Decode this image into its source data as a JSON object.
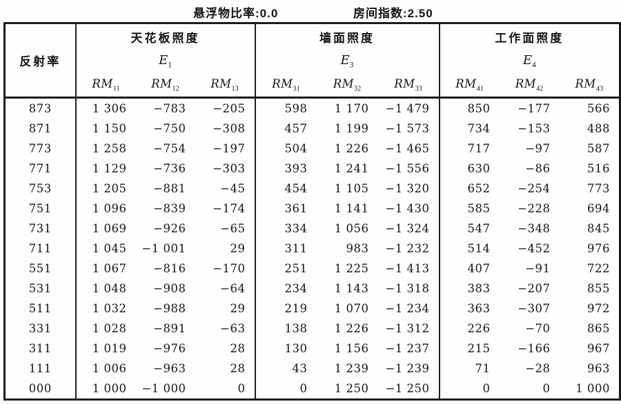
{
  "colors": {
    "ink": "#1c1c1c",
    "paper": "#fefefe"
  },
  "page_header": {
    "suspended_matter_ratio_label": "悬浮物比率:",
    "suspended_matter_ratio_value": "0.0",
    "room_index_label": "房间指数:",
    "room_index_value": "2.50"
  },
  "table": {
    "corner_header": "反射率",
    "groups": [
      {
        "title": "天花板照度",
        "symbol": "E",
        "symbol_sub": "1",
        "columns": [
          {
            "name": "RM",
            "sub": "11"
          },
          {
            "name": "RM",
            "sub": "12"
          },
          {
            "name": "RM",
            "sub": "13"
          }
        ]
      },
      {
        "title": "墙面照度",
        "symbol": "E",
        "symbol_sub": "3",
        "columns": [
          {
            "name": "RM",
            "sub": "31"
          },
          {
            "name": "RM",
            "sub": "32"
          },
          {
            "name": "RM",
            "sub": "33"
          }
        ]
      },
      {
        "title": "工作面照度",
        "symbol": "E",
        "symbol_sub": "4",
        "columns": [
          {
            "name": "RM",
            "sub": "41"
          },
          {
            "name": "RM",
            "sub": "42"
          },
          {
            "name": "RM",
            "sub": "43"
          }
        ]
      }
    ],
    "rows": [
      {
        "reflectance": "873",
        "values": [
          "1 306",
          "−783",
          "−205",
          "598",
          "1 170",
          "−1 479",
          "850",
          "−177",
          "566"
        ]
      },
      {
        "reflectance": "871",
        "values": [
          "1 150",
          "−750",
          "−308",
          "457",
          "1 199",
          "−1 573",
          "734",
          "−153",
          "488"
        ]
      },
      {
        "reflectance": "773",
        "values": [
          "1 258",
          "−754",
          "−197",
          "504",
          "1 226",
          "−1 465",
          "717",
          "−97",
          "587"
        ]
      },
      {
        "reflectance": "771",
        "values": [
          "1 129",
          "−736",
          "−303",
          "393",
          "1 241",
          "−1 556",
          "630",
          "−86",
          "516"
        ]
      },
      {
        "reflectance": "753",
        "values": [
          "1 205",
          "−881",
          "−45",
          "454",
          "1 105",
          "−1 320",
          "652",
          "−254",
          "773"
        ]
      },
      {
        "reflectance": "751",
        "values": [
          "1 096",
          "−839",
          "−174",
          "361",
          "1 141",
          "−1 430",
          "585",
          "−228",
          "694"
        ]
      },
      {
        "reflectance": "731",
        "values": [
          "1 069",
          "−926",
          "−65",
          "334",
          "1 056",
          "−1 324",
          "547",
          "−348",
          "845"
        ]
      },
      {
        "reflectance": "711",
        "values": [
          "1 045",
          "−1 001",
          "29",
          "311",
          "983",
          "−1 232",
          "514",
          "−452",
          "976"
        ]
      },
      {
        "reflectance": "551",
        "values": [
          "1 067",
          "−816",
          "−170",
          "251",
          "1 225",
          "−1 413",
          "407",
          "−91",
          "722"
        ]
      },
      {
        "reflectance": "531",
        "values": [
          "1 048",
          "−908",
          "−64",
          "234",
          "1 143",
          "−1 318",
          "383",
          "−207",
          "855"
        ]
      },
      {
        "reflectance": "511",
        "values": [
          "1 032",
          "−988",
          "29",
          "219",
          "1 070",
          "−1 234",
          "363",
          "−307",
          "972"
        ]
      },
      {
        "reflectance": "331",
        "values": [
          "1 028",
          "−891",
          "−63",
          "138",
          "1 226",
          "−1 312",
          "226",
          "−70",
          "865"
        ]
      },
      {
        "reflectance": "311",
        "values": [
          "1 019",
          "−976",
          "28",
          "130",
          "1 156",
          "−1 237",
          "215",
          "−166",
          "967"
        ]
      },
      {
        "reflectance": "111",
        "values": [
          "1 006",
          "−963",
          "28",
          "43",
          "1 239",
          "−1 239",
          "71",
          "−28",
          "963"
        ]
      },
      {
        "reflectance": "000",
        "values": [
          "1 000",
          "−1 000",
          "0",
          "0",
          "1 250",
          "−1 250",
          "0",
          "0",
          "1 000"
        ]
      }
    ]
  }
}
